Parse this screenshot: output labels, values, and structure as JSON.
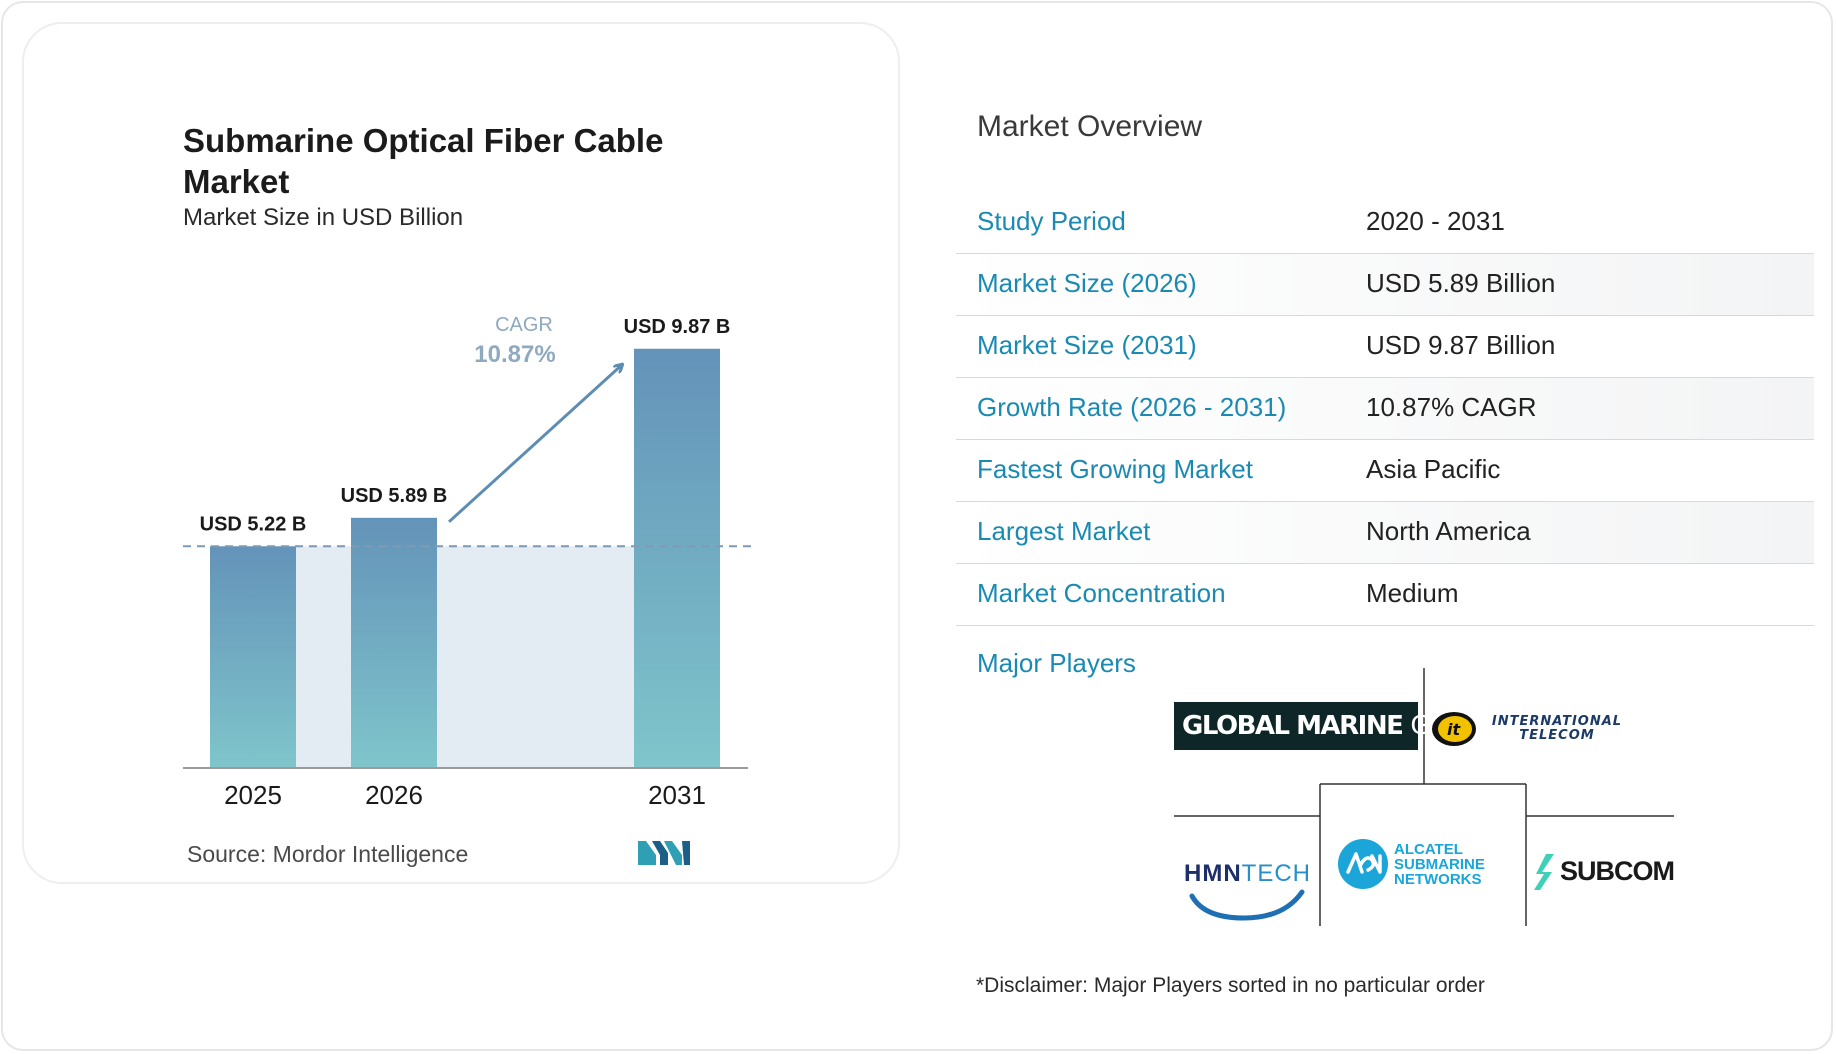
{
  "chart_data": {
    "type": "bar",
    "title": "Submarine Optical Fiber Cable Market",
    "subtitle": "Market Size in USD Billion",
    "categories": [
      "2025",
      "2026",
      "2031"
    ],
    "values": [
      5.22,
      5.89,
      9.87
    ],
    "value_labels": [
      "USD 5.22 B",
      "USD 5.89 B",
      "USD 9.87 B"
    ],
    "cagr_label": "CAGR",
    "cagr_value": "10.87%",
    "ylim": [
      0,
      10.5
    ],
    "bar_color_top": "#6493b9",
    "bar_color_bottom": "#7fc5cb",
    "band_color": "#e3ebf3",
    "arrow_color": "#5e8db3",
    "grid": false
  },
  "source": "Source:  Mordor Intelligence",
  "overview": {
    "heading": "Market Overview",
    "rows": [
      {
        "label": "Study Period",
        "value": "2020 - 2031"
      },
      {
        "label": "Market Size (2026)",
        "value": "USD 5.89 Billion"
      },
      {
        "label": "Market Size (2031)",
        "value": "USD 9.87 Billion"
      },
      {
        "label": "Growth Rate (2026 - 2031)",
        "value": "10.87% CAGR"
      },
      {
        "label": "Fastest Growing Market",
        "value": "Asia Pacific"
      },
      {
        "label": "Largest Market",
        "value": "North America"
      },
      {
        "label": "Market Concentration",
        "value": "Medium"
      }
    ],
    "label_color": "#1b8ab3",
    "players_heading": "Major Players"
  },
  "players": {
    "global_marine": {
      "main": "GLOBAL MARINE",
      "group": "GROUP"
    },
    "international_telecom": {
      "line1": "INTERNATIONAL",
      "line2": "TELECOM",
      "badge": "it"
    },
    "hmn_tech": {
      "main": "HMN",
      "suffix": "TECH"
    },
    "alcatel": {
      "line1": "ALCATEL",
      "line2": "SUBMARINE",
      "line3": "NETWORKS"
    },
    "subcom": {
      "name": "SUBCOM"
    }
  },
  "disclaimer": "*Disclaimer: Major Players sorted in no particular order"
}
